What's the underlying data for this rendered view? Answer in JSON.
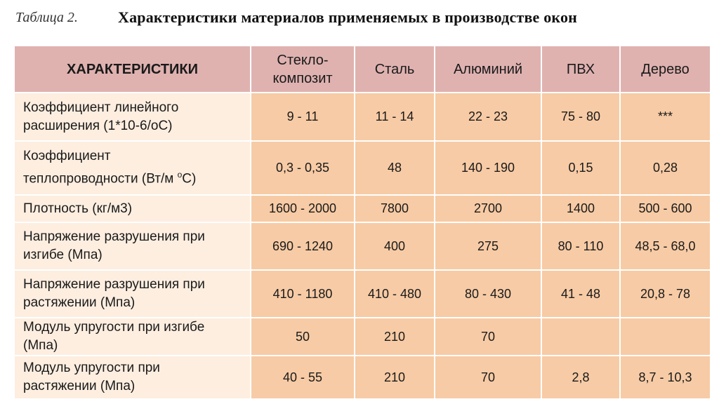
{
  "caption": {
    "label": "Таблица 2.",
    "title": "Характеристики материалов применяемых в производстве окон"
  },
  "header": {
    "first": "ХАРАКТЕРИСТИКИ",
    "materials_line1": [
      "Стекло-",
      "Сталь",
      "Алюминий",
      "ПВХ",
      "Дерево"
    ],
    "materials_line2": [
      "композит",
      "",
      "",
      "",
      ""
    ]
  },
  "rows": [
    {
      "label_l1": "Коэффициент линейного",
      "label_l2": "расширения  (1*10-6/оС)",
      "values": [
        "9 - 11",
        "11 - 14",
        "22 - 23",
        "75 - 80",
        "***"
      ]
    },
    {
      "label_l1": "Коэффициент",
      "label_l2": "теплопроводности  (Вт/м ",
      "unit_sup": "о",
      "unit_tail": "С)",
      "values": [
        "0,3 - 0,35",
        "48",
        "140 - 190",
        "0,15",
        "0,28"
      ]
    },
    {
      "label_l1": "Плотность   (кг/м3)",
      "label_l2": "",
      "values": [
        "1600 - 2000",
        "7800",
        "2700",
        "1400",
        "500 - 600"
      ]
    },
    {
      "label_l1": "Напряжение разрушения при",
      "label_l2": "изгибе  (Мпа)",
      "values": [
        "690 - 1240",
        "400",
        "275",
        "80 - 110",
        "48,5 - 68,0"
      ]
    },
    {
      "label_l1": "Напряжение разрушения при",
      "label_l2": "растяжении  (Мпа)",
      "values": [
        "410 - 1180",
        "410 - 480",
        "80 - 430",
        "41 - 48",
        "20,8 - 78"
      ]
    },
    {
      "label_l1": "Модуль упругости при изгибе",
      "label_l2": "(Мпа)",
      "values": [
        "50",
        "210",
        "70",
        "",
        ""
      ]
    },
    {
      "label_l1": "Модуль упругости при",
      "label_l2": "растяжении  (Мпа)",
      "values": [
        "40 - 55",
        "210",
        "70",
        "2,8",
        "8,7 - 10,3"
      ]
    }
  ],
  "colors": {
    "header_bg": "#dfb2b0",
    "label_bg": "#fdeee0",
    "value_bg": "#f7cba5"
  }
}
